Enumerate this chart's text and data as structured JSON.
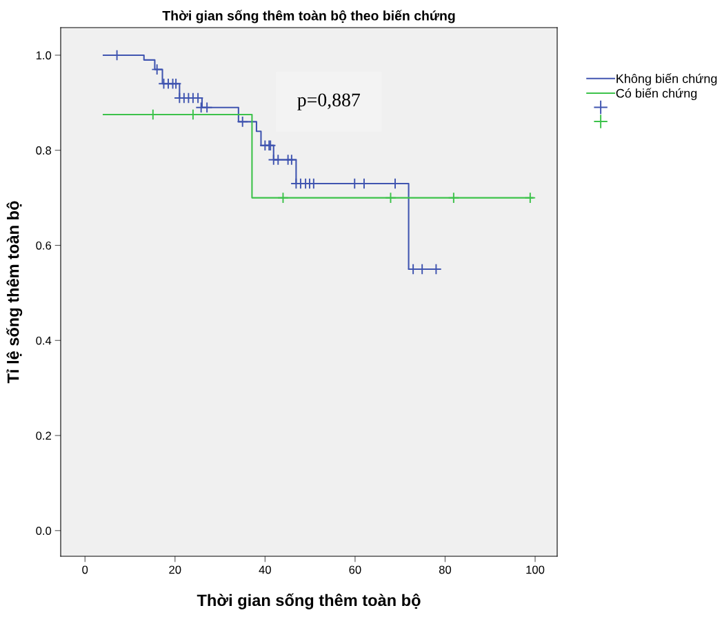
{
  "chart_data": {
    "type": "step",
    "title": "Thời gian sống thêm toàn bộ theo biến chứng",
    "xlabel": "Thời gian sống thêm toàn bộ",
    "ylabel": "Tỉ lệ sống thêm toàn bộ",
    "annotations": [
      "p=0,887"
    ],
    "series": [
      {
        "name": "Không biến chứng",
        "color": "#4055b0",
        "x": [
          4.1,
          13.1,
          15.5,
          17.2,
          21.0,
          26.0,
          34.1,
          38.1,
          39.1,
          41.9,
          46.9,
          71.9,
          78.7
        ],
        "values": [
          1.0,
          0.99,
          0.97,
          0.94,
          0.91,
          0.89,
          0.86,
          0.84,
          0.81,
          0.78,
          0.73,
          0.55,
          0.55
        ]
      },
      {
        "name": "Có biến chứng",
        "color": "#3cc24a",
        "x": [
          4.1,
          37.1,
          99.5
        ],
        "values": [
          0.875,
          0.7,
          0.7
        ]
      },
      {
        "type": "scatter",
        "marker": "cross",
        "color": "#4055b0",
        "x": [
          7.1,
          16.0,
          17.5,
          18.5,
          19.5,
          20.2,
          21.0,
          22.0,
          23.0,
          24.0,
          25.1,
          25.8,
          27.1,
          35.0,
          40.0,
          40.9,
          41.2,
          41.9,
          42.9,
          45.1,
          45.9,
          46.9,
          47.9,
          49.0,
          49.9,
          50.8,
          59.9,
          62.0,
          68.9,
          72.9,
          74.9,
          78.0
        ],
        "values": [
          1.0,
          0.97,
          0.94,
          0.94,
          0.94,
          0.94,
          0.91,
          0.91,
          0.91,
          0.91,
          0.91,
          0.89,
          0.89,
          0.86,
          0.81,
          0.81,
          0.81,
          0.78,
          0.78,
          0.78,
          0.78,
          0.73,
          0.73,
          0.73,
          0.73,
          0.73,
          0.73,
          0.73,
          0.73,
          0.55,
          0.55,
          0.55
        ]
      },
      {
        "type": "scatter",
        "marker": "cross",
        "color": "#3cc24a",
        "x": [
          15.1,
          24.0,
          44.0,
          67.9,
          81.9,
          98.9
        ],
        "values": [
          0.875,
          0.875,
          0.7,
          0.7,
          0.7,
          0.7
        ]
      }
    ],
    "xlim": [
      -5.4,
      104.9
    ],
    "ylim": [
      -0.054,
      1.058
    ],
    "xticks": [
      0,
      20,
      40,
      60,
      80,
      100
    ],
    "yticks": [
      {
        "value": 0,
        "label": "0.0"
      },
      {
        "value": 0.2,
        "label": "0.2"
      },
      {
        "value": 0.4,
        "label": "0.4"
      },
      {
        "value": 0.6,
        "label": "0.6"
      },
      {
        "value": 0.8,
        "label": "0.8"
      },
      {
        "value": 1.0,
        "label": "1.0"
      }
    ],
    "grid": false,
    "legend": "top right"
  }
}
